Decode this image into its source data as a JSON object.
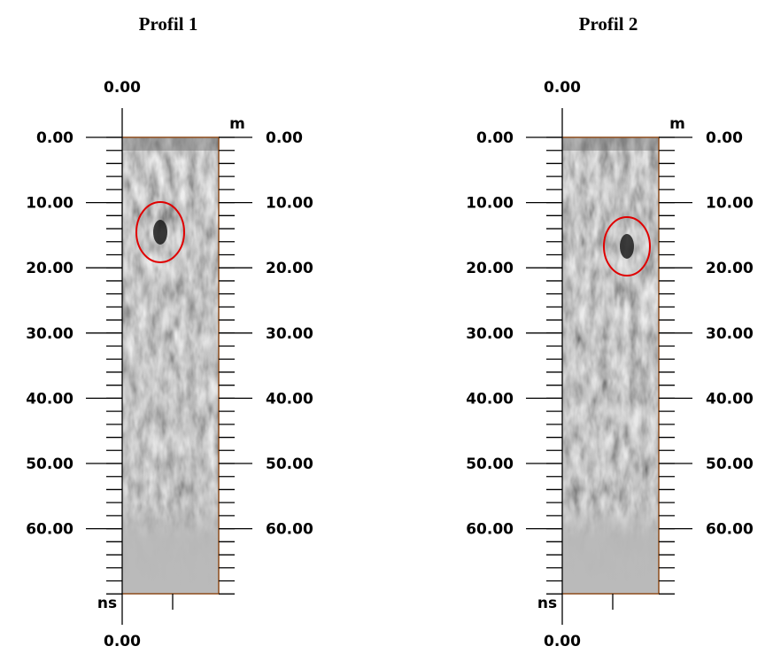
{
  "panels": [
    {
      "title": "Profil 1",
      "top_label": "0.00",
      "unit_top": "m",
      "unit_bottom": "ns",
      "bottom_label": "0.00",
      "left_ticks": [
        "0.00",
        "10.00",
        "20.00",
        "30.00",
        "40.00",
        "50.00",
        "60.00"
      ],
      "right_ticks": [
        "0.00",
        "10.00",
        "20.00",
        "30.00",
        "40.00",
        "50.00",
        "60.00"
      ]
    },
    {
      "title": "Profil 2",
      "top_label": "0.00",
      "unit_top": "m",
      "unit_bottom": "ns",
      "bottom_label": "0.00",
      "left_ticks": [
        "0.00",
        "10.00",
        "20.00",
        "30.00",
        "40.00",
        "50.00",
        "60.00"
      ],
      "right_ticks": [
        "0.00",
        "10.00",
        "20.00",
        "30.00",
        "40.00",
        "50.00",
        "60.00"
      ]
    }
  ]
}
